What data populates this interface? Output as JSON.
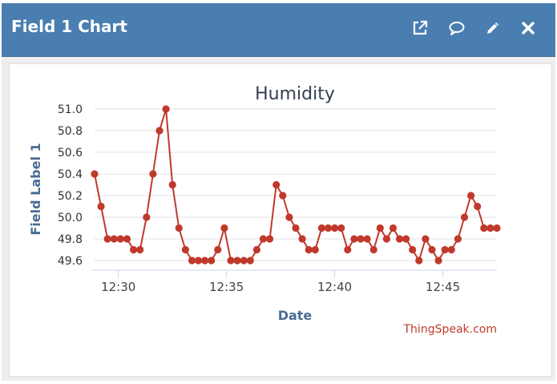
{
  "header": {
    "title": "Field 1 Chart",
    "background": "#4a7eb0",
    "icons": [
      "external-link-icon",
      "comment-icon",
      "pencil-icon",
      "close-icon"
    ]
  },
  "credit": "ThingSpeak.com",
  "chart_data": {
    "type": "line",
    "title": "Humidity",
    "xlabel": "Date",
    "ylabel": "Field Label 1",
    "ylim": [
      49.55,
      51.0
    ],
    "yticks": [
      "51.0",
      "50.8",
      "50.6",
      "50.4",
      "50.2",
      "50.0",
      "49.8",
      "49.6"
    ],
    "xticks": [
      "12:30",
      "12:35",
      "12:40",
      "12:45"
    ],
    "xtick_minutes": [
      30,
      35,
      40,
      45
    ],
    "grid": true,
    "legend": "none",
    "series": [
      {
        "color": "#c0392b",
        "x_minutes": [
          28.9,
          29.2,
          29.5,
          29.8,
          30.1,
          30.4,
          30.7,
          31.0,
          31.3,
          31.6,
          31.9,
          32.2,
          32.5,
          32.8,
          33.1,
          33.4,
          33.7,
          34.0,
          34.3,
          34.6,
          34.9,
          35.2,
          35.5,
          35.8,
          36.1,
          36.4,
          36.7,
          37.0,
          37.3,
          37.6,
          37.9,
          38.2,
          38.5,
          38.8,
          39.1,
          39.4,
          39.7,
          40.0,
          40.3,
          40.6,
          40.9,
          41.2,
          41.5,
          41.8,
          42.1,
          42.4,
          42.7,
          43.0,
          43.3,
          43.6,
          43.9,
          44.2,
          44.5,
          44.8,
          45.1,
          45.4,
          45.7,
          46.0,
          46.3,
          46.6,
          46.9,
          47.2,
          47.5
        ],
        "y": [
          50.4,
          50.1,
          49.8,
          49.8,
          49.8,
          49.8,
          49.7,
          49.7,
          50.0,
          50.4,
          50.8,
          51.0,
          50.3,
          49.9,
          49.7,
          49.6,
          49.6,
          49.6,
          49.6,
          49.7,
          49.9,
          49.6,
          49.6,
          49.6,
          49.6,
          49.7,
          49.8,
          49.8,
          50.3,
          50.2,
          50.0,
          49.9,
          49.8,
          49.7,
          49.7,
          49.9,
          49.9,
          49.9,
          49.9,
          49.7,
          49.8,
          49.8,
          49.8,
          49.7,
          49.9,
          49.8,
          49.9,
          49.8,
          49.8,
          49.7,
          49.6,
          49.8,
          49.7,
          49.6,
          49.7,
          49.7,
          49.8,
          50.0,
          50.2,
          50.1,
          49.9,
          49.9,
          49.9
        ]
      }
    ]
  }
}
